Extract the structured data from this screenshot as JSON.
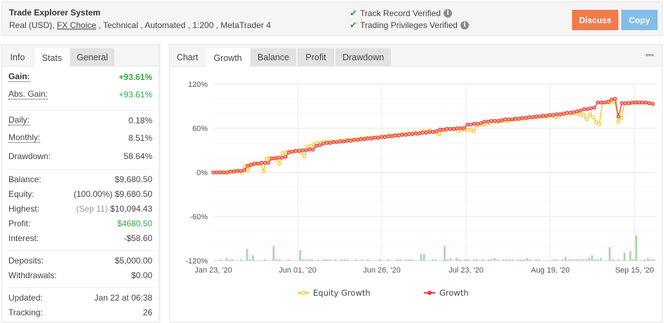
{
  "header": {
    "title": "Trade Explorer System",
    "subtitle_prefix": "Real (USD),",
    "broker_link": "FX Choice",
    "subtitle_suffix": " , Technical , Automated , 1:200 , MetaTrader 4",
    "verifications": [
      {
        "label": "Track Record Verified",
        "icon": "check-icon"
      },
      {
        "label": "Trading Privileges Verified",
        "icon": "check-icon"
      }
    ],
    "buttons": {
      "discuss": "Discuss",
      "copy": "Copy"
    },
    "colors": {
      "discuss": "#f27b4b",
      "copy": "#84bde8",
      "verified": "#2eaa3f"
    }
  },
  "left_tabs": [
    {
      "label": "Info",
      "state": "plain"
    },
    {
      "label": "Stats",
      "state": "active"
    },
    {
      "label": "General",
      "state": "inactive"
    }
  ],
  "stats": {
    "gain": {
      "label": "Gain:",
      "value": "+93.61%"
    },
    "abs_gain": {
      "label": "Abs. Gain:",
      "value": "+93.61%"
    },
    "daily": {
      "label": "Daily:",
      "value": "0.18%"
    },
    "monthly": {
      "label": "Monthly:",
      "value": "8.51%"
    },
    "drawdown": {
      "label": "Drawdown:",
      "value": "58.64%"
    },
    "balance": {
      "label": "Balance:",
      "value": "$9,680.50"
    },
    "equity": {
      "label": "Equity:",
      "note": "(100.00%)",
      "value": "$9,680.50"
    },
    "highest": {
      "label": "Highest:",
      "note": "(Sep 11)",
      "value": "$10,094.43"
    },
    "profit": {
      "label": "Profit:",
      "value": "$4680.50"
    },
    "interest": {
      "label": "Interest:",
      "value": "-$58.60"
    },
    "deposits": {
      "label": "Deposits:",
      "value": "$5,000.00"
    },
    "withdrawals": {
      "label": "Withdrawals:",
      "value": "$0.00"
    },
    "updated": {
      "label": "Updated:",
      "value": "Jan 22 at 06:38"
    },
    "tracking": {
      "label": "Tracking:",
      "value": "26"
    }
  },
  "chart_tabs": [
    {
      "label": "Chart",
      "state": "plain"
    },
    {
      "label": "Growth",
      "state": "active"
    },
    {
      "label": "Balance",
      "state": "inactive"
    },
    {
      "label": "Profit",
      "state": "inactive"
    },
    {
      "label": "Drawdown",
      "state": "inactive"
    }
  ],
  "more_menu_icon": "more-dots-icon",
  "chart_data": {
    "type": "line",
    "title": "",
    "xlabel": "",
    "ylabel": "",
    "ylim": [
      -120,
      120
    ],
    "y_ticks": [
      "120%",
      "60%",
      "0%",
      "-60%",
      "-120%"
    ],
    "x_ticks": [
      "Jan 23, '20",
      "Jun 01, '20",
      "Jun 26, '20",
      "Jul 23, '20",
      "Aug 19, '20",
      "Sep 15, '20"
    ],
    "grid": true,
    "legend_position": "bottom",
    "series": [
      {
        "name": "Equity Growth",
        "color": "#f5c518",
        "marker": "circle-open",
        "values": [
          0,
          0,
          0,
          0,
          -1,
          1,
          1,
          2,
          2,
          0,
          8,
          2,
          11,
          11,
          12,
          12,
          1,
          19,
          19,
          19,
          20,
          12,
          26,
          27,
          28,
          28,
          29,
          30,
          27,
          22,
          35,
          36,
          38,
          40,
          40,
          41,
          41,
          41,
          42,
          42,
          43,
          43,
          43,
          44,
          44,
          45,
          45,
          46,
          46,
          47,
          47,
          47,
          48,
          48,
          49,
          49,
          50,
          50,
          51,
          51,
          52,
          52,
          53,
          53,
          54,
          52,
          54,
          56,
          56,
          57,
          55,
          54,
          52,
          58,
          57,
          59,
          59,
          59,
          56,
          57,
          58,
          58,
          58,
          56,
          64,
          65,
          65,
          66,
          67,
          69,
          69,
          69,
          70,
          70,
          70,
          72,
          72,
          72,
          73,
          73,
          74,
          75,
          75,
          75,
          76,
          76,
          76,
          77,
          77,
          75,
          76,
          79,
          79,
          80,
          80,
          80,
          80,
          78,
          78,
          72,
          79,
          75,
          68,
          66,
          95,
          95,
          95,
          95,
          96,
          69,
          74,
          94,
          94,
          94,
          95,
          95,
          95,
          95,
          95,
          94,
          93
        ]
      },
      {
        "name": "Growth",
        "color": "#e8413c",
        "marker": "circle",
        "values": [
          0,
          0,
          0,
          0,
          0,
          1,
          1,
          2,
          2,
          3,
          9,
          10,
          12,
          12,
          13,
          13,
          13,
          19,
          19,
          20,
          20,
          21,
          27,
          28,
          29,
          29,
          30,
          30,
          31,
          31,
          36,
          37,
          39,
          40,
          40,
          41,
          41,
          42,
          42,
          43,
          43,
          44,
          44,
          45,
          45,
          46,
          46,
          47,
          47,
          48,
          48,
          49,
          49,
          50,
          50,
          51,
          51,
          52,
          52,
          53,
          53,
          54,
          54,
          55,
          55,
          56,
          58,
          58,
          59,
          59,
          59,
          60,
          60,
          60,
          65,
          65,
          66,
          66,
          67,
          69,
          69,
          70,
          70,
          70,
          71,
          72,
          72,
          72,
          73,
          73,
          74,
          74,
          75,
          75,
          76,
          76,
          77,
          77,
          78,
          78,
          79,
          79,
          80,
          81,
          81,
          82,
          83,
          84,
          86,
          86,
          87,
          88,
          95,
          95,
          95,
          96,
          99,
          100,
          76,
          94,
          94,
          94,
          95,
          95,
          95,
          95,
          95,
          94,
          93
        ]
      }
    ],
    "bar_series": {
      "name": "Daily activity (unlabeled)",
      "color": "#a8d8a4",
      "values": [
        0,
        0,
        1,
        0,
        2,
        1,
        1,
        0,
        0,
        1,
        0,
        9,
        1,
        4,
        0,
        0,
        0,
        1,
        0,
        0,
        11,
        1,
        1,
        0,
        0,
        1,
        0,
        0,
        0,
        8,
        1,
        1,
        1,
        1,
        0,
        1,
        0,
        1,
        1,
        1,
        0,
        1,
        0,
        1,
        1,
        1,
        0,
        0,
        1,
        0,
        1,
        0,
        1,
        0,
        0,
        0,
        1,
        0,
        0,
        1,
        0,
        0,
        1,
        1,
        0,
        1,
        1,
        1,
        0,
        0,
        5,
        5,
        0,
        0,
        1,
        1,
        0,
        0,
        11,
        1,
        2,
        0,
        2,
        1,
        0,
        1,
        1,
        0,
        1,
        1,
        0,
        1,
        0,
        1,
        1,
        2,
        1,
        0,
        1,
        1,
        1,
        1,
        0,
        1,
        1,
        1,
        2,
        1,
        0,
        1,
        1,
        0,
        0,
        0,
        0,
        1,
        1,
        0,
        1,
        3,
        1,
        1,
        1,
        1,
        1,
        1,
        1,
        2,
        4,
        1,
        1,
        2,
        0,
        0,
        10,
        1,
        0,
        1,
        0,
        6,
        0,
        7,
        1,
        19,
        0,
        0,
        1,
        2,
        1,
        1
      ]
    }
  }
}
